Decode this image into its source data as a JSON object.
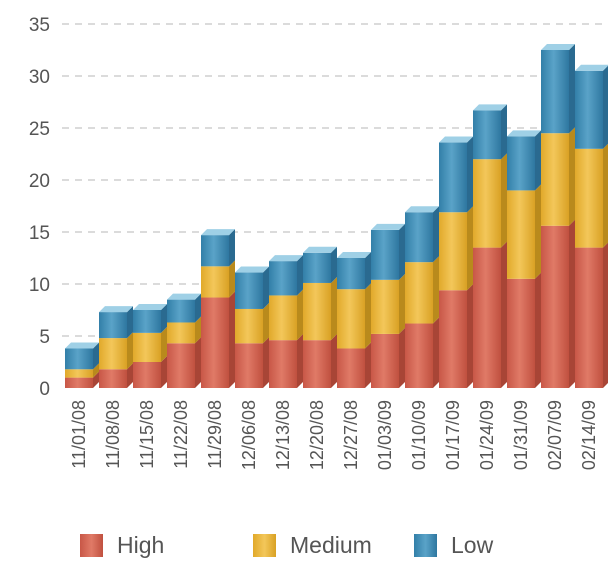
{
  "chart_data": {
    "type": "bar",
    "stacked": true,
    "categories": [
      "11/01/08",
      "11/08/08",
      "11/15/08",
      "11/22/08",
      "11/29/08",
      "12/06/08",
      "12/13/08",
      "12/20/08",
      "12/27/08",
      "01/03/09",
      "01/10/09",
      "01/17/09",
      "01/24/09",
      "01/31/09",
      "02/07/09",
      "02/14/09"
    ],
    "series": [
      {
        "name": "High",
        "color": "#d0614f",
        "values": [
          1,
          1.8,
          2.5,
          4.3,
          8.7,
          4.3,
          4.6,
          4.6,
          3.8,
          5.2,
          6.2,
          9.4,
          13.5,
          10.5,
          15.6,
          13.5
        ]
      },
      {
        "name": "Medium",
        "color": "#e9b535",
        "values": [
          0.8,
          3,
          2.8,
          2,
          3,
          3.3,
          4.3,
          5.5,
          5.7,
          5.2,
          5.9,
          7.5,
          8.5,
          8.5,
          8.9,
          9.5
        ]
      },
      {
        "name": "Low",
        "color": "#3e8db7",
        "values": [
          2,
          2.5,
          2.2,
          2.2,
          3,
          3.5,
          3.3,
          2.9,
          3,
          4.8,
          4.8,
          6.7,
          4.7,
          5.2,
          8,
          7.5
        ]
      }
    ],
    "yticks": [
      0,
      5,
      10,
      15,
      20,
      25,
      30,
      35
    ],
    "ylim": [
      0,
      35
    ],
    "grid": true,
    "legend_position": "bottom"
  }
}
